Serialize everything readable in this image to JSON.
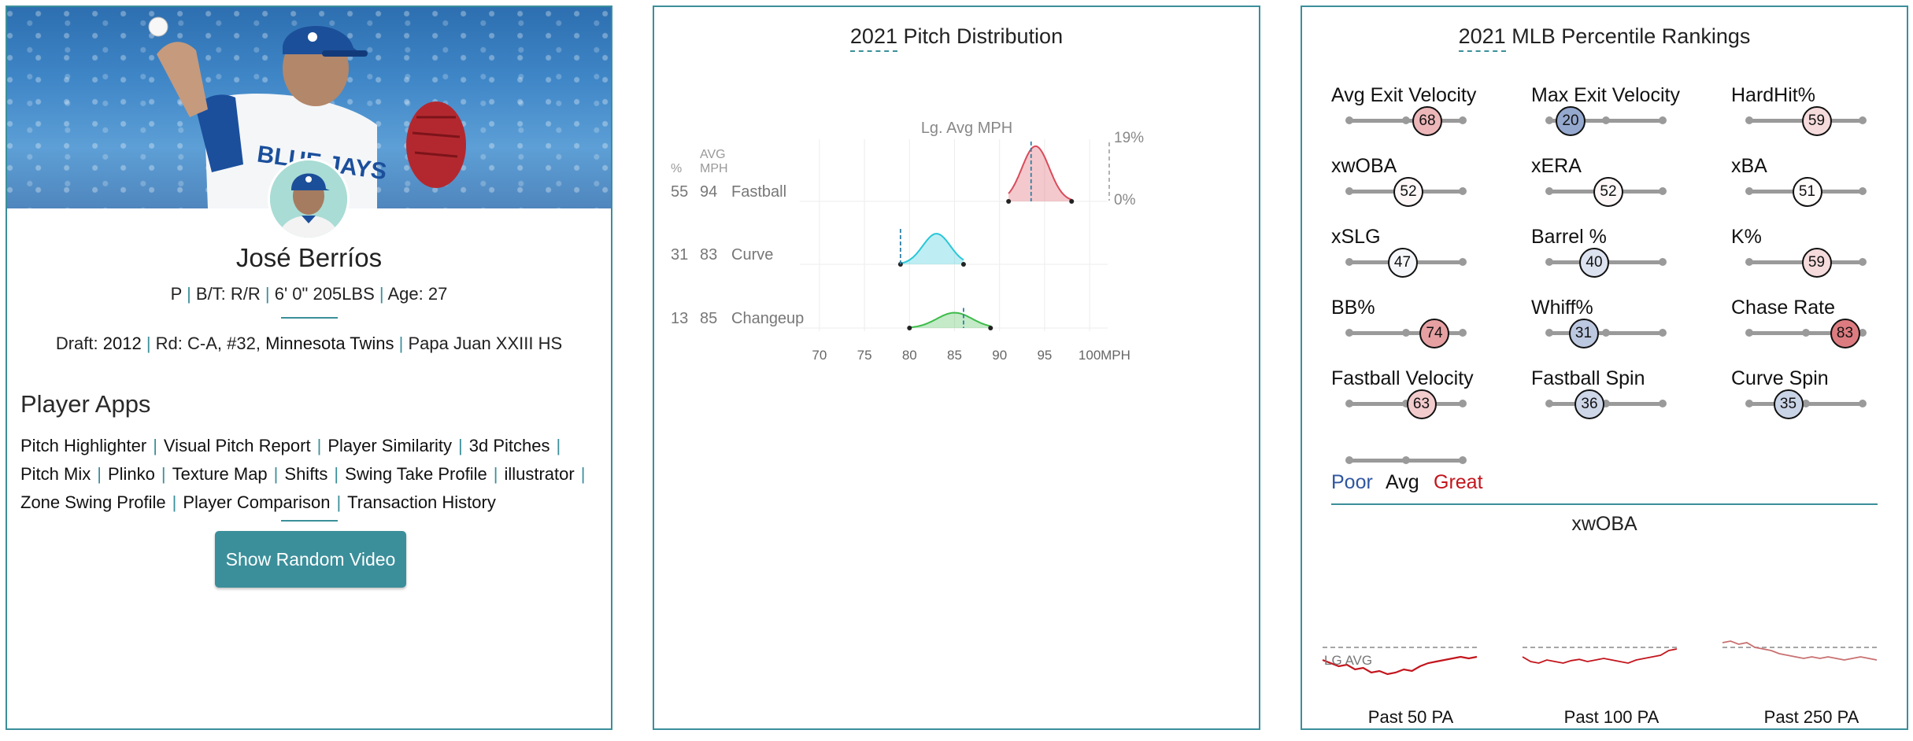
{
  "player": {
    "name": "José Berríos",
    "position": "P",
    "bt": "B/T: R/R",
    "size": "6' 0\" 205LBS",
    "age": "Age: 27",
    "draft_label": "Draft:",
    "draft_year": "2012",
    "draft_round": "Rd: C-A, #32,",
    "draft_team": "Minnesota Twins",
    "school": "Papa Juan XXIII HS",
    "hero_jersey_text": "BLUE JAYS"
  },
  "apps": {
    "title": "Player Apps",
    "items": [
      "Pitch Highlighter",
      "Visual Pitch Report",
      "Player Similarity",
      "3d Pitches",
      "Pitch Mix",
      "Plinko",
      "Texture Map",
      "Shifts",
      "Swing Take Profile",
      "illustrator",
      "Zone Swing Profile",
      "Player Comparison",
      "Transaction History"
    ],
    "video_button": "Show Random Video"
  },
  "pitch_dist": {
    "title_year": "2021",
    "title_rest": "Pitch Distribution",
    "col_pct": "%",
    "col_avg1": "AVG",
    "col_avg2": "MPH",
    "lg_avg_label": "Lg. Avg MPH",
    "pct_top": "19%",
    "pct_bottom": "0%",
    "x_unit": "MPH",
    "colors": {
      "Fastball": "#d94b5a",
      "Curve": "#28c7d8",
      "Changeup": "#3dbb4a"
    }
  },
  "chart_data": {
    "type": "area",
    "title": "2021 Pitch Distribution",
    "xlabel": "MPH",
    "x_ticks": [
      70,
      75,
      80,
      85,
      90,
      95,
      100
    ],
    "xlim": [
      68,
      102
    ],
    "ylabel": "%",
    "ylim": [
      0,
      19
    ],
    "series": [
      {
        "name": "Fastball",
        "pct": 55,
        "avg_mph": 94,
        "lg_avg_mph": 93.5,
        "min_mph": 91,
        "max_mph": 98,
        "peak_mph": 94,
        "peak_pct": 18
      },
      {
        "name": "Curve",
        "pct": 31,
        "avg_mph": 83,
        "lg_avg_mph": 79,
        "min_mph": 79,
        "max_mph": 86,
        "peak_mph": 83,
        "peak_pct": 10
      },
      {
        "name": "Changeup",
        "pct": 13,
        "avg_mph": 85,
        "lg_avg_mph": 86,
        "min_mph": 80,
        "max_mph": 89,
        "peak_mph": 85,
        "peak_pct": 5
      }
    ]
  },
  "percentiles": {
    "title_year": "2021",
    "title_rest": "MLB Percentile Rankings",
    "color_poor": "#3056a0",
    "color_great": "#c3151c",
    "legend": {
      "poor": "Poor",
      "avg": "Avg",
      "great": "Great"
    },
    "metrics": [
      {
        "label": "Avg Exit Velocity",
        "value": 68
      },
      {
        "label": "Max Exit Velocity",
        "value": 20
      },
      {
        "label": "HardHit%",
        "value": 59
      },
      {
        "label": "xwOBA",
        "value": 52
      },
      {
        "label": "xERA",
        "value": 52
      },
      {
        "label": "xBA",
        "value": 51
      },
      {
        "label": "xSLG",
        "value": 47
      },
      {
        "label": "Barrel %",
        "value": 40
      },
      {
        "label": "K%",
        "value": 59
      },
      {
        "label": "BB%",
        "value": 74
      },
      {
        "label": "Whiff%",
        "value": 31
      },
      {
        "label": "Chase Rate",
        "value": 83
      },
      {
        "label": "Fastball Velocity",
        "value": 63
      },
      {
        "label": "Fastball Spin",
        "value": 36
      },
      {
        "label": "Curve Spin",
        "value": 35
      }
    ]
  },
  "xwoba": {
    "title": "xwOBA",
    "lg_avg_label": "LG AVG",
    "sparks": [
      {
        "label": "Past 50 PA"
      },
      {
        "label": "Past 100 PA"
      },
      {
        "label": "Past 250 PA"
      }
    ]
  }
}
